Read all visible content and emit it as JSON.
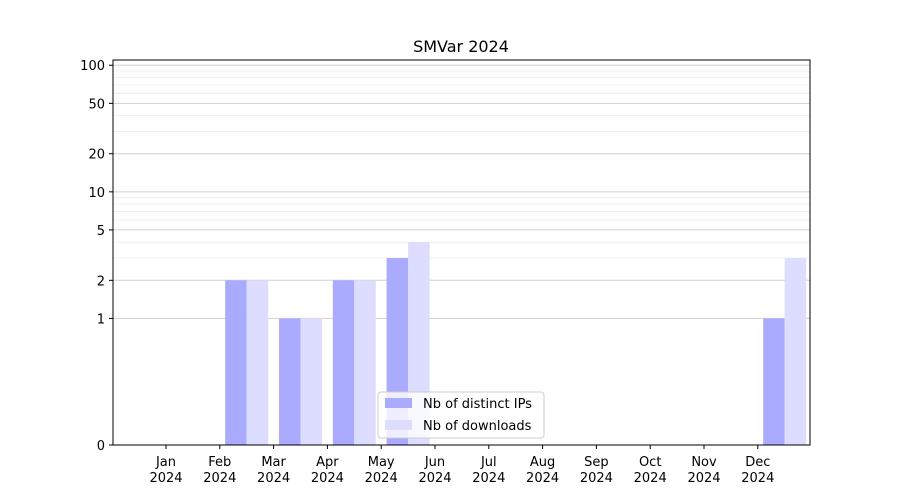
{
  "chart_data": {
    "type": "bar",
    "title": "SMVar 2024",
    "xlabel": "",
    "ylabel": "",
    "yscale": "symlog",
    "ylim": [
      0,
      110
    ],
    "yticks": [
      0,
      1,
      2,
      5,
      10,
      20,
      50,
      100
    ],
    "ytick_labels": [
      "0",
      "1",
      "2",
      "5",
      "10",
      "20",
      "50",
      "100"
    ],
    "grid": "horizontal",
    "legend_position": "bottom-center",
    "categories": [
      "Jan\n2024",
      "Feb\n2024",
      "Mar\n2024",
      "Apr\n2024",
      "May\n2024",
      "Jun\n2024",
      "Jul\n2024",
      "Aug\n2024",
      "Sep\n2024",
      "Oct\n2024",
      "Nov\n2024",
      "Dec\n2024"
    ],
    "category_lines": [
      [
        "Jan",
        "2024"
      ],
      [
        "Feb",
        "2024"
      ],
      [
        "Mar",
        "2024"
      ],
      [
        "Apr",
        "2024"
      ],
      [
        "May",
        "2024"
      ],
      [
        "Jun",
        "2024"
      ],
      [
        "Jul",
        "2024"
      ],
      [
        "Aug",
        "2024"
      ],
      [
        "Sep",
        "2024"
      ],
      [
        "Oct",
        "2024"
      ],
      [
        "Nov",
        "2024"
      ],
      [
        "Dec",
        "2024"
      ]
    ],
    "series": [
      {
        "name": "Nb of distinct IPs",
        "color": "#aaaaff",
        "values": [
          0,
          2,
          1,
          2,
          3,
          0,
          0,
          0,
          0,
          0,
          0,
          1
        ]
      },
      {
        "name": "Nb of downloads",
        "color": "#ddddff",
        "values": [
          0,
          2,
          1,
          2,
          4,
          0,
          0,
          0,
          0,
          0,
          0,
          3
        ]
      }
    ]
  }
}
